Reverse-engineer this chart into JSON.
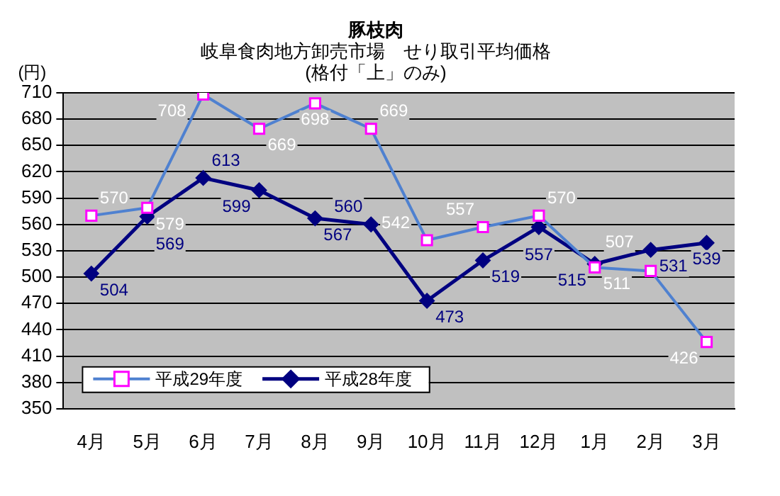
{
  "chart_data": {
    "type": "line",
    "title": "豚枝肉",
    "subtitle": "岐阜食肉地方卸売市場　せり取引平均価格\n(格付「上」のみ)",
    "ylabel": "(円)",
    "categories": [
      "4月",
      "5月",
      "6月",
      "7月",
      "8月",
      "9月",
      "10月",
      "11月",
      "12月",
      "1月",
      "2月",
      "3月"
    ],
    "series": [
      {
        "name": "平成29年度",
        "color": "#4f81d0",
        "marker": "square",
        "values": [
          570,
          579,
          708,
          669,
          698,
          669,
          542,
          557,
          570,
          511,
          507,
          426
        ]
      },
      {
        "name": "平成28年度",
        "color": "#000080",
        "marker": "diamond",
        "values": [
          504,
          569,
          613,
          599,
          567,
          560,
          473,
          519,
          557,
          515,
          531,
          539
        ]
      }
    ],
    "ylim": [
      350,
      710
    ],
    "yticks": [
      350,
      380,
      410,
      440,
      470,
      500,
      530,
      560,
      590,
      620,
      650,
      680,
      710
    ],
    "grid": "y",
    "legend": "bottom left",
    "data_labels": true,
    "line_style": "solid"
  }
}
